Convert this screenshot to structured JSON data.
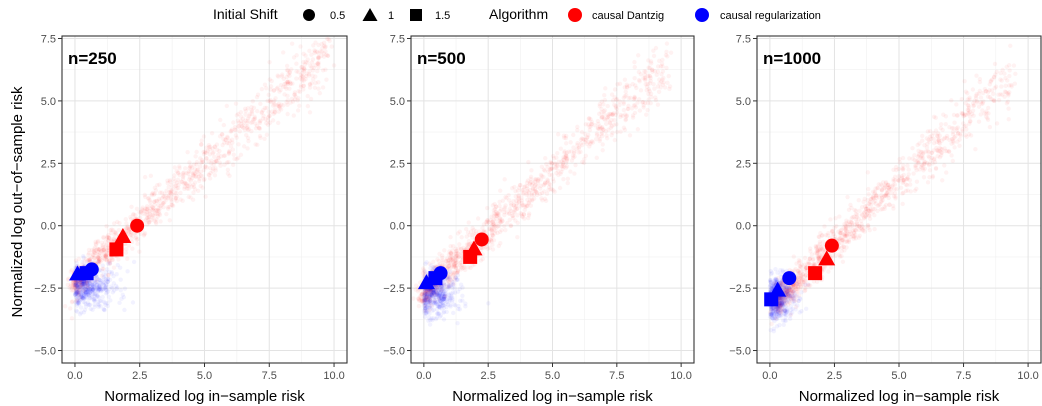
{
  "legend": {
    "shift_title": "Initial Shift",
    "shift_items": [
      {
        "label": "0.5",
        "shape": "circle"
      },
      {
        "label": "1",
        "shape": "triangle"
      },
      {
        "label": "1.5",
        "shape": "square"
      }
    ],
    "algo_title": "Algorithm",
    "algo_items": [
      {
        "label": "causal Dantzig",
        "color": "#ff0000"
      },
      {
        "label": "causal regularization",
        "color": "#0000ff"
      }
    ],
    "placement": "top"
  },
  "chart_data": [
    {
      "type": "scatter",
      "title": "n=250",
      "xlabel": "Normalized log in−sample risk",
      "ylabel": "Normalized log out−of−sample risk",
      "xlim": [
        -0.5,
        10.5
      ],
      "ylim": [
        -5.5,
        7.6
      ],
      "xticks": [
        "0.0",
        "2.5",
        "5.0",
        "7.5",
        "10.0"
      ],
      "yticks": [
        "−5.0",
        "−2.5",
        "0.0",
        "2.5",
        "5.0",
        "7.5"
      ],
      "grid": true,
      "cloud": {
        "causal Dantzig": {
          "x_range": [
            0.0,
            9.8
          ],
          "y_center_slope": 0.9,
          "y_intercept": -2.3
        },
        "causal regularization": {
          "x_range": [
            0.0,
            1.5
          ],
          "y_center": -2.4
        }
      },
      "series": [
        {
          "name": "causal Dantzig",
          "shift": "0.5",
          "x": 2.4,
          "y": 0.0
        },
        {
          "name": "causal Dantzig",
          "shift": "1",
          "x": 1.85,
          "y": -0.45
        },
        {
          "name": "causal Dantzig",
          "shift": "1.5",
          "x": 1.6,
          "y": -0.95
        },
        {
          "name": "causal regularization",
          "shift": "0.5",
          "x": 0.65,
          "y": -1.75
        },
        {
          "name": "causal regularization",
          "shift": "1",
          "x": 0.1,
          "y": -1.95
        },
        {
          "name": "causal regularization",
          "shift": "1.5",
          "x": 0.45,
          "y": -1.9
        }
      ]
    },
    {
      "type": "scatter",
      "title": "n=500",
      "xlabel": "Normalized log in−sample risk",
      "ylabel": "",
      "xlim": [
        -0.5,
        10.5
      ],
      "ylim": [
        -5.5,
        7.6
      ],
      "xticks": [
        "0.0",
        "2.5",
        "5.0",
        "7.5",
        "10.0"
      ],
      "yticks": [
        "−5.0",
        "−2.5",
        "0.0",
        "2.5",
        "5.0",
        "7.5"
      ],
      "grid": true,
      "cloud": {
        "causal Dantzig": {
          "x_range": [
            0.0,
            9.5
          ],
          "y_center_slope": 0.92,
          "y_intercept": -2.7
        },
        "causal regularization": {
          "x_range": [
            0.0,
            1.3
          ],
          "y_center": -2.7
        }
      },
      "series": [
        {
          "name": "causal Dantzig",
          "shift": "0.5",
          "x": 2.25,
          "y": -0.55
        },
        {
          "name": "causal Dantzig",
          "shift": "1",
          "x": 1.95,
          "y": -0.95
        },
        {
          "name": "causal Dantzig",
          "shift": "1.5",
          "x": 1.8,
          "y": -1.25
        },
        {
          "name": "causal regularization",
          "shift": "0.5",
          "x": 0.65,
          "y": -1.9
        },
        {
          "name": "causal regularization",
          "shift": "1",
          "x": 0.1,
          "y": -2.3
        },
        {
          "name": "causal regularization",
          "shift": "1.5",
          "x": 0.45,
          "y": -2.1
        }
      ]
    },
    {
      "type": "scatter",
      "title": "n=1000",
      "xlabel": "Normalized log in−sample risk",
      "ylabel": "",
      "xlim": [
        -0.5,
        10.5
      ],
      "ylim": [
        -5.5,
        7.6
      ],
      "xticks": [
        "0.0",
        "2.5",
        "5.0",
        "7.5",
        "10.0"
      ],
      "yticks": [
        "−5.0",
        "−2.5",
        "0.0",
        "2.5",
        "5.0",
        "7.5"
      ],
      "grid": true,
      "cloud": {
        "causal Dantzig": {
          "x_range": [
            0.3,
            9.5
          ],
          "y_center_slope": 0.95,
          "y_intercept": -3.3
        },
        "causal regularization": {
          "x_range": [
            0.0,
            1.0
          ],
          "y_center": -2.9
        }
      },
      "series": [
        {
          "name": "causal Dantzig",
          "shift": "0.5",
          "x": 2.4,
          "y": -0.8
        },
        {
          "name": "causal Dantzig",
          "shift": "1",
          "x": 2.2,
          "y": -1.35
        },
        {
          "name": "causal Dantzig",
          "shift": "1.5",
          "x": 1.75,
          "y": -1.9
        },
        {
          "name": "causal regularization",
          "shift": "0.5",
          "x": 0.75,
          "y": -2.1
        },
        {
          "name": "causal regularization",
          "shift": "1",
          "x": 0.3,
          "y": -2.6
        },
        {
          "name": "causal regularization",
          "shift": "1.5",
          "x": 0.05,
          "y": -2.95
        }
      ]
    }
  ]
}
